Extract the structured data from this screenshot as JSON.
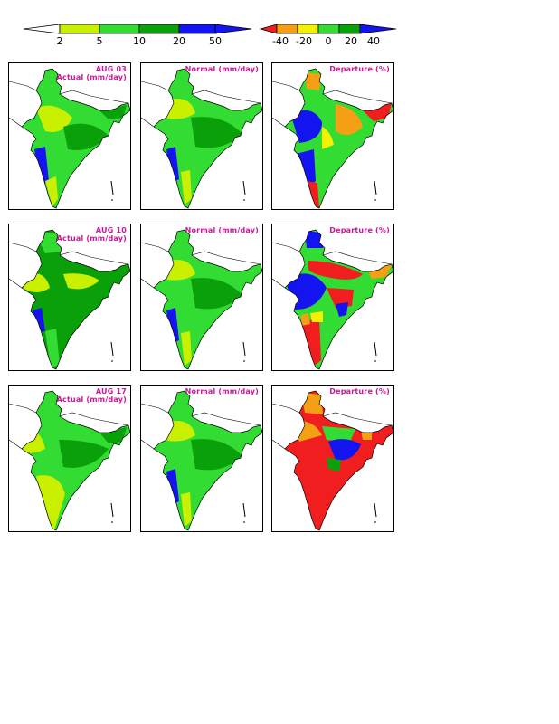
{
  "colors": {
    "white": "#ffffff",
    "lightgreen": "#c8f000",
    "green": "#32dc32",
    "darkgreen": "#0aa00a",
    "blue": "#1414f0",
    "red": "#f01e1e",
    "orange": "#f5a014",
    "yellow": "#f5f000",
    "title": "#d0159a"
  },
  "rainfall_scale": {
    "ticks": [
      "2",
      "5",
      "10",
      "20",
      "50"
    ]
  },
  "departure_scale": {
    "ticks": [
      "-40",
      "-20",
      "0",
      "20",
      "40"
    ]
  },
  "titles": {
    "normal": "Normal (mm/day)",
    "departure": "Departure (%)"
  },
  "weeks": [
    {
      "date": "AUG 03",
      "actual_label": "Actual (mm/day)",
      "actual": "mixed",
      "normal": "mixed",
      "departure": "blue-west-orange-east"
    },
    {
      "date": "AUG 10",
      "actual_label": "Actual (mm/day)",
      "actual": "green",
      "normal": "mixed",
      "departure": "red-north-blue-west"
    },
    {
      "date": "AUG 17",
      "actual_label": "Actual (mm/day)",
      "actual": "lightgreen",
      "normal": "mixed",
      "departure": "red-south"
    }
  ]
}
